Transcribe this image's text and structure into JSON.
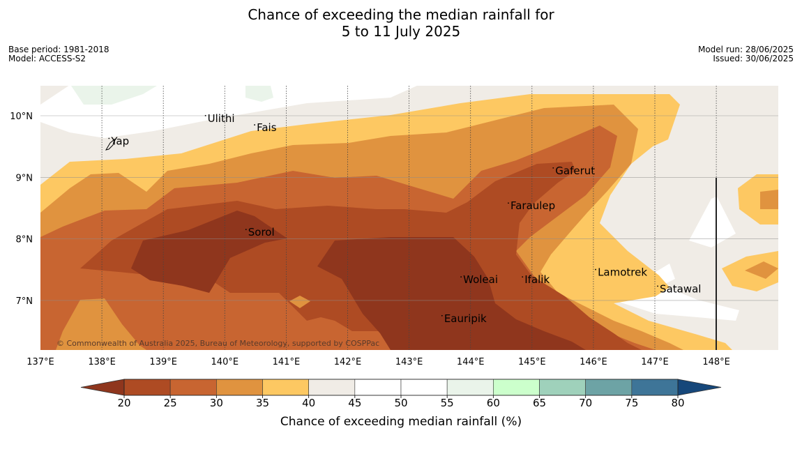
{
  "title_line1": "Chance of exceeding the median rainfall for",
  "title_line2": "5 to 11 July 2025",
  "meta_left": {
    "base_period": "Base period: 1981-2018",
    "model": "Model: ACCESS-S2"
  },
  "meta_right": {
    "model_run": "Model run: 28/06/2025",
    "issued": "Issued: 30/06/2025"
  },
  "copyright": "© Commonwealth of Australia 2025, Bureau of Meteorology, supported by COSPPac",
  "colorbar": {
    "label": "Chance of exceeding median rainfall (%)",
    "ticks": [
      "20",
      "25",
      "30",
      "35",
      "40",
      "45",
      "50",
      "55",
      "60",
      "65",
      "70",
      "75",
      "80"
    ],
    "under_color": "#8f361d",
    "over_color": "#16477a",
    "bins": [
      {
        "range": "20-25",
        "color": "#ae4b23"
      },
      {
        "range": "25-30",
        "color": "#c86531"
      },
      {
        "range": "30-35",
        "color": "#e0933f"
      },
      {
        "range": "35-40",
        "color": "#fdc862"
      },
      {
        "range": "40-45",
        "color": "#f0ece6"
      },
      {
        "range": "45-50",
        "color": "#ffffff"
      },
      {
        "range": "50-55",
        "color": "#ffffff"
      },
      {
        "range": "55-60",
        "color": "#eaf4ea"
      },
      {
        "range": "60-65",
        "color": "#ccffcc"
      },
      {
        "range": "65-70",
        "color": "#9fd1bb"
      },
      {
        "range": "70-75",
        "color": "#6da3a5"
      },
      {
        "range": "75-80",
        "color": "#3e7598"
      }
    ]
  },
  "chart_data": {
    "type": "heatmap",
    "variable": "Chance of exceeding median rainfall (%)",
    "xlim": [
      137.0,
      149.0
    ],
    "ylim": [
      6.2,
      10.5
    ],
    "x_ticks": [
      137,
      138,
      139,
      140,
      141,
      142,
      143,
      144,
      145,
      146,
      147,
      148
    ],
    "x_tick_labels": [
      "137°E",
      "138°E",
      "139°E",
      "140°E",
      "141°E",
      "142°E",
      "143°E",
      "144°E",
      "145°E",
      "146°E",
      "147°E",
      "148°E"
    ],
    "y_ticks": [
      7,
      8,
      9,
      10
    ],
    "y_tick_labels": [
      "7°N",
      "8°N",
      "9°N",
      "10°N"
    ],
    "places": [
      {
        "name": "Yap",
        "lon": 138.15,
        "lat": 9.53
      },
      {
        "name": "Ulithi",
        "lon": 139.72,
        "lat": 9.9
      },
      {
        "name": "Fais",
        "lon": 140.52,
        "lat": 9.75
      },
      {
        "name": "Gaferut",
        "lon": 145.38,
        "lat": 9.05
      },
      {
        "name": "Faraulep",
        "lon": 144.65,
        "lat": 8.48
      },
      {
        "name": "Sorol",
        "lon": 140.38,
        "lat": 8.05
      },
      {
        "name": "Lamotrek",
        "lon": 146.07,
        "lat": 7.4
      },
      {
        "name": "Woleai",
        "lon": 143.88,
        "lat": 7.28
      },
      {
        "name": "Ifalik",
        "lon": 144.88,
        "lat": 7.28
      },
      {
        "name": "Satawal",
        "lon": 147.08,
        "lat": 7.13
      },
      {
        "name": "Eauripik",
        "lon": 143.57,
        "lat": 6.65
      }
    ],
    "grid": true,
    "legend": "colorbar-bottom"
  }
}
